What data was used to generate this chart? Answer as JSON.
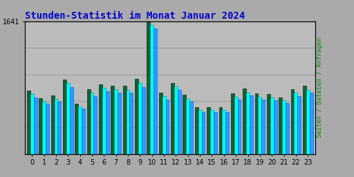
{
  "title": "Stunden-Statistik im Monat Januar 2024",
  "title_color": "#0000cc",
  "title_fontsize": 10,
  "ylabel_right": "Seiten / Dateien / Anfragen",
  "ylabel_right_color": "#008800",
  "categories": [
    0,
    1,
    2,
    3,
    4,
    5,
    6,
    7,
    8,
    9,
    10,
    11,
    12,
    13,
    14,
    15,
    16,
    17,
    18,
    19,
    20,
    21,
    22,
    23
  ],
  "seiten": [
    780,
    690,
    720,
    920,
    620,
    800,
    860,
    840,
    840,
    930,
    1641,
    760,
    880,
    730,
    580,
    580,
    580,
    750,
    810,
    750,
    740,
    700,
    800,
    840
  ],
  "dateien": [
    740,
    650,
    680,
    875,
    590,
    755,
    815,
    800,
    795,
    875,
    1600,
    715,
    835,
    685,
    545,
    545,
    545,
    710,
    760,
    710,
    700,
    660,
    755,
    795
  ],
  "anfragen": [
    700,
    620,
    650,
    830,
    560,
    715,
    775,
    760,
    755,
    830,
    1550,
    675,
    795,
    650,
    515,
    515,
    515,
    675,
    720,
    675,
    665,
    630,
    715,
    755
  ],
  "color_seiten": "#006633",
  "color_dateien": "#00ffff",
  "color_anfragen": "#3399ff",
  "bg_color": "#aaaaaa",
  "plot_bg_color": "#bbbbbb",
  "grid_color": "#999999",
  "ylim_max": 1641,
  "ytick_label": "1641",
  "ytick_val": 1641,
  "bar_width": 0.28
}
